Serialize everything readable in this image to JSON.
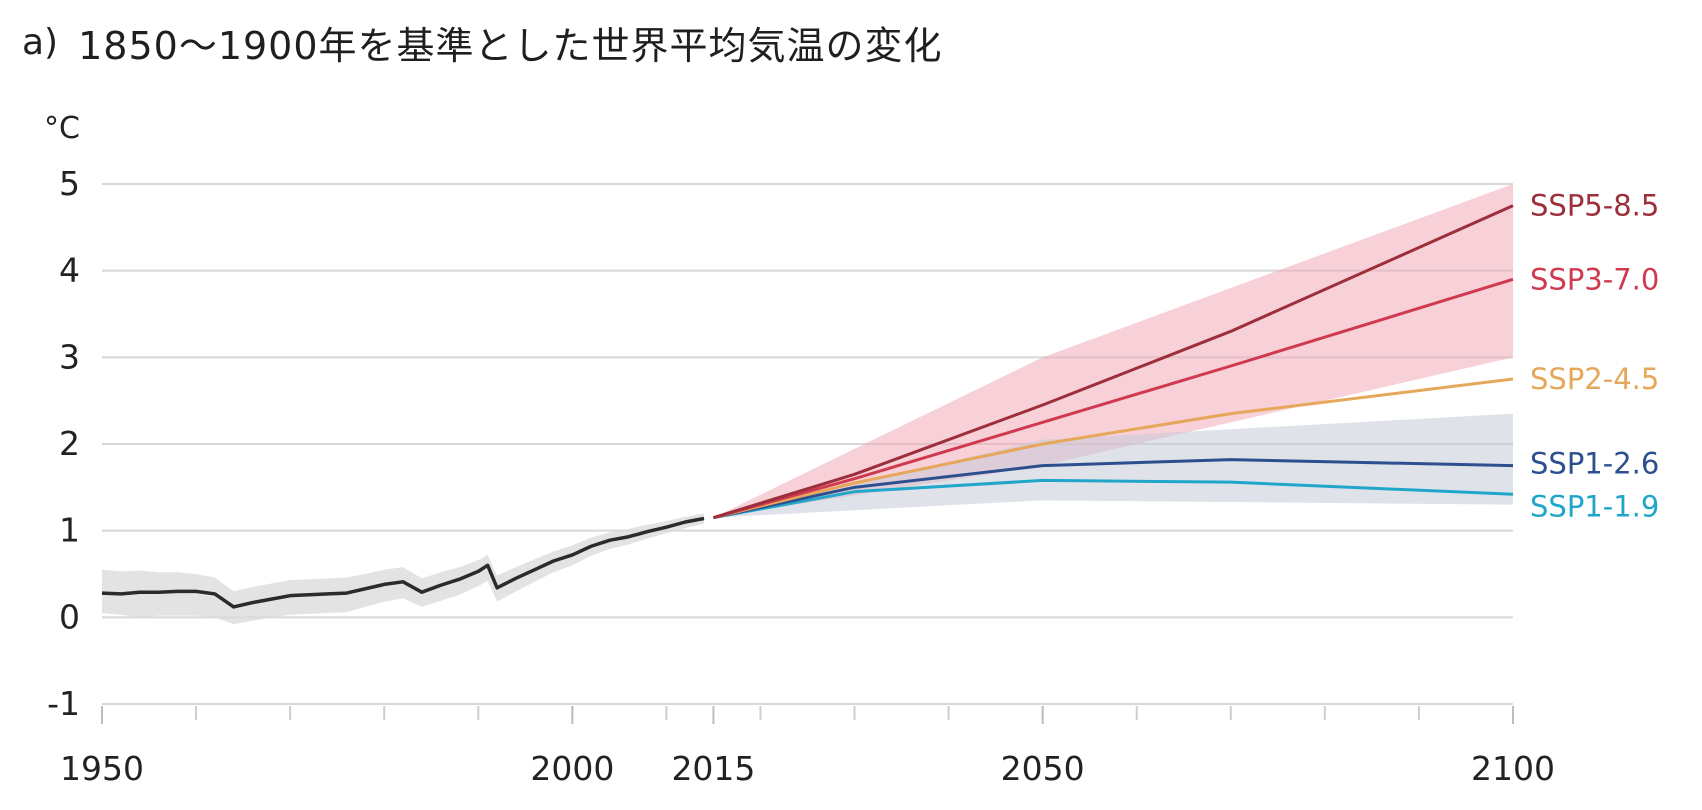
{
  "header": {
    "panel_label": "a)",
    "title": "1850～1900年を基準とした世界平均気温の変化"
  },
  "chart_data": {
    "type": "line",
    "title": "1850～1900年を基準とした世界平均気温の変化",
    "panel_label": "a)",
    "ylabel": "°C",
    "xlabel": "",
    "xlim": [
      1950,
      2100
    ],
    "ylim": [
      -1,
      5
    ],
    "yticks": [
      -1,
      0,
      1,
      2,
      3,
      4,
      5
    ],
    "xticks": [
      1950,
      2000,
      2015,
      2050,
      2100
    ],
    "grid": true,
    "historical": {
      "color": "#2b2b2b",
      "band_color": "#d9d9d9",
      "x": [
        1950,
        1952,
        1954,
        1956,
        1958,
        1960,
        1962,
        1964,
        1966,
        1968,
        1970,
        1972,
        1974,
        1976,
        1978,
        1980,
        1982,
        1984,
        1986,
        1988,
        1990,
        1991,
        1992,
        1994,
        1996,
        1998,
        2000,
        2002,
        2004,
        2006,
        2008,
        2010,
        2012,
        2014
      ],
      "y": [
        0.28,
        0.27,
        0.29,
        0.29,
        0.3,
        0.3,
        0.27,
        0.12,
        0.17,
        0.21,
        0.25,
        0.26,
        0.27,
        0.28,
        0.33,
        0.38,
        0.41,
        0.29,
        0.37,
        0.44,
        0.53,
        0.6,
        0.34,
        0.45,
        0.55,
        0.65,
        0.72,
        0.82,
        0.89,
        0.93,
        0.99,
        1.04,
        1.1,
        1.14
      ],
      "band_lower": [
        0.05,
        0.03,
        0.0,
        0.02,
        0.02,
        0.02,
        0.0,
        -0.08,
        -0.04,
        0.0,
        0.03,
        0.04,
        0.05,
        0.06,
        0.12,
        0.18,
        0.22,
        0.12,
        0.19,
        0.26,
        0.36,
        0.42,
        0.18,
        0.3,
        0.41,
        0.52,
        0.6,
        0.71,
        0.79,
        0.84,
        0.91,
        0.97,
        1.03,
        1.08
      ],
      "band_upper": [
        0.55,
        0.53,
        0.54,
        0.52,
        0.52,
        0.5,
        0.46,
        0.3,
        0.35,
        0.39,
        0.43,
        0.44,
        0.45,
        0.46,
        0.5,
        0.55,
        0.58,
        0.45,
        0.52,
        0.58,
        0.66,
        0.72,
        0.48,
        0.58,
        0.67,
        0.76,
        0.83,
        0.92,
        0.98,
        1.02,
        1.07,
        1.11,
        1.16,
        1.2
      ]
    },
    "series": [
      {
        "name": "SSP5-8.5",
        "color": "#9c2f3b",
        "x": [
          2015,
          2030,
          2050,
          2070,
          2100
        ],
        "values": [
          1.15,
          1.65,
          2.45,
          3.3,
          4.75
        ]
      },
      {
        "name": "SSP3-7.0",
        "color": "#cf3a4f",
        "x": [
          2015,
          2030,
          2050,
          2070,
          2100
        ],
        "values": [
          1.15,
          1.6,
          2.25,
          2.9,
          3.9
        ]
      },
      {
        "name": "SSP2-4.5",
        "color": "#e6a75a",
        "x": [
          2015,
          2030,
          2050,
          2070,
          2100
        ],
        "values": [
          1.15,
          1.55,
          2.0,
          2.35,
          2.75
        ]
      },
      {
        "name": "SSP1-2.6",
        "color": "#2e4f8f",
        "x": [
          2015,
          2030,
          2050,
          2070,
          2100
        ],
        "values": [
          1.15,
          1.5,
          1.75,
          1.82,
          1.75
        ]
      },
      {
        "name": "SSP1-1.9",
        "color": "#21a6c9",
        "x": [
          2015,
          2030,
          2050,
          2070,
          2100
        ],
        "values": [
          1.15,
          1.45,
          1.58,
          1.56,
          1.42
        ]
      }
    ],
    "bands": [
      {
        "name": "SSP5-8.5 / SSP3-7.0 range",
        "color": "#f0a9b8",
        "x": [
          2015,
          2050,
          2100
        ],
        "lower": [
          1.15,
          1.75,
          3.0
        ],
        "upper": [
          1.15,
          3.0,
          5.0
        ]
      },
      {
        "name": "SSP1-2.6 / SSP1-1.9 range",
        "color": "#c6cad8",
        "x": [
          2015,
          2050,
          2100
        ],
        "lower": [
          1.15,
          1.35,
          1.3
        ],
        "upper": [
          1.15,
          2.05,
          2.35
        ]
      }
    ]
  }
}
